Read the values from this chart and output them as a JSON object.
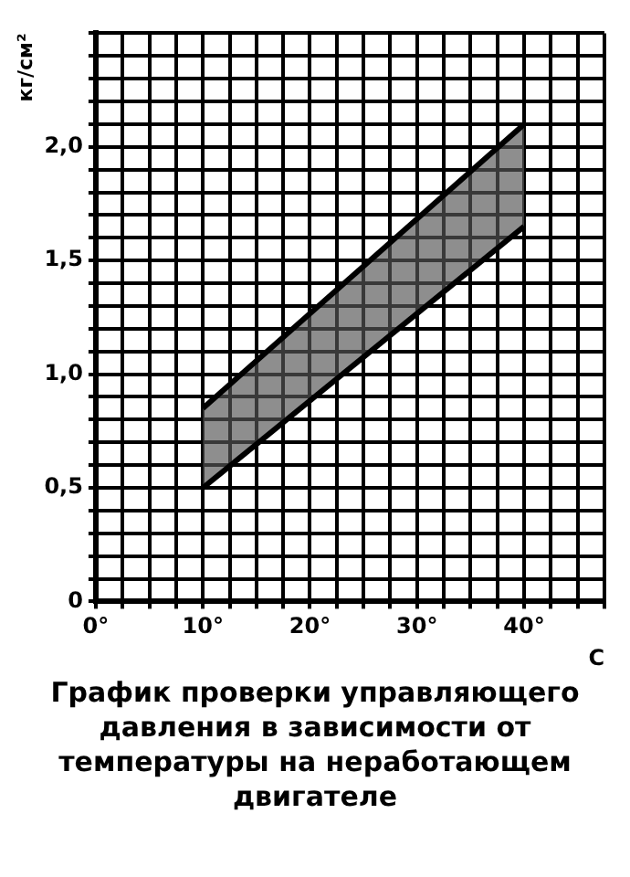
{
  "chart_data": {
    "type": "line",
    "title": "График проверки управляющего давления в зависимости от температуры на неработающем двигателе",
    "xlabel": "C",
    "ylabel": "кг/см²",
    "series": [
      {
        "type": "line",
        "color": "#000000",
        "values": [
          0.5,
          1.65
        ]
      },
      {
        "type": "area",
        "color": "#555555",
        "values": [
          0.85,
          2.1
        ]
      }
    ],
    "x": [
      10,
      40
    ],
    "xlim": [
      0,
      47.5
    ],
    "xticks": [
      {
        "value": 0,
        "label": "0°"
      },
      {
        "value": 2.5,
        "label": null
      },
      {
        "value": 5,
        "label": null
      },
      {
        "value": 7.5,
        "label": null
      },
      {
        "value": 10,
        "label": "10°"
      },
      {
        "value": 12.5,
        "label": null
      },
      {
        "value": 15,
        "label": null
      },
      {
        "value": 17.5,
        "label": null
      },
      {
        "value": 20,
        "label": "20°"
      },
      {
        "value": 22.5,
        "label": null
      },
      {
        "value": 25,
        "label": null
      },
      {
        "value": 27.5,
        "label": null
      },
      {
        "value": 30,
        "label": "30°"
      },
      {
        "value": 32.5,
        "label": null
      },
      {
        "value": 35,
        "label": null
      },
      {
        "value": 37.5,
        "label": null
      },
      {
        "value": 40,
        "label": "40°"
      },
      {
        "value": 42.5,
        "label": null
      },
      {
        "value": 45,
        "label": null
      },
      {
        "value": 47.5,
        "label": null
      }
    ],
    "ylim": [
      0,
      2.5
    ],
    "yticks": [
      {
        "value": 0,
        "label": "0"
      },
      {
        "value": 0.1,
        "label": null
      },
      {
        "value": 0.2,
        "label": null
      },
      {
        "value": 0.3,
        "label": null
      },
      {
        "value": 0.4,
        "label": null
      },
      {
        "value": 0.5,
        "label": "0,5"
      },
      {
        "value": 0.6,
        "label": null
      },
      {
        "value": 0.7,
        "label": null
      },
      {
        "value": 0.8,
        "label": null
      },
      {
        "value": 0.9,
        "label": null
      },
      {
        "value": 1,
        "label": "1,0"
      },
      {
        "value": 1.1,
        "label": null
      },
      {
        "value": 1.2,
        "label": null
      },
      {
        "value": 1.3,
        "label": null
      },
      {
        "value": 1.4,
        "label": null
      },
      {
        "value": 1.5,
        "label": "1,5"
      },
      {
        "value": 1.6,
        "label": null
      },
      {
        "value": 1.7,
        "label": null
      },
      {
        "value": 1.8,
        "label": null
      },
      {
        "value": 1.9,
        "label": null
      },
      {
        "value": 2,
        "label": "2,0"
      },
      {
        "value": 2.1,
        "label": null
      },
      {
        "value": 2.2,
        "label": null
      },
      {
        "value": 2.3,
        "label": null
      },
      {
        "value": 2.4,
        "label": null
      },
      {
        "value": 2.5,
        "label": null
      }
    ],
    "grid": true,
    "legend": false,
    "marker": "none",
    "line_style": "solid"
  }
}
